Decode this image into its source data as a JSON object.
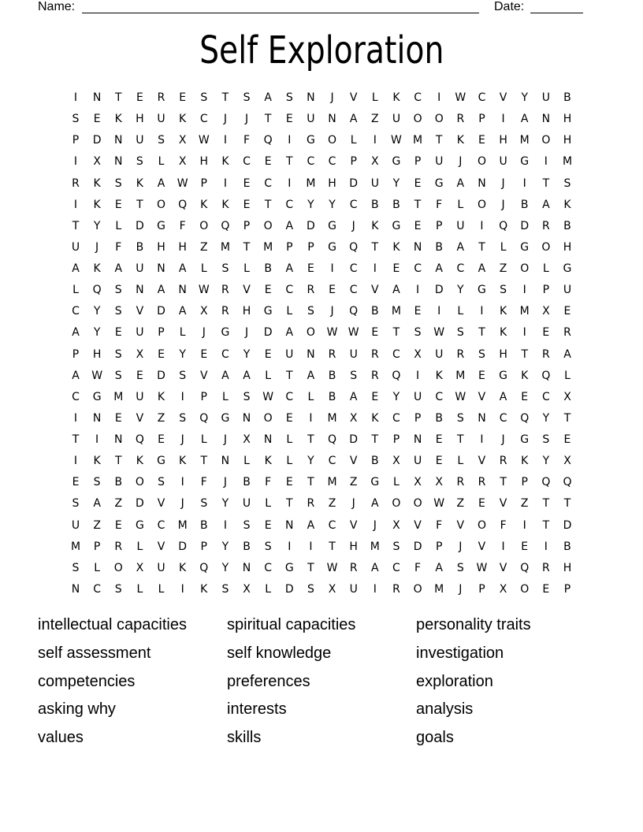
{
  "header": {
    "name_label": "Name:",
    "date_label": "Date:"
  },
  "title": "Self Exploration",
  "grid_rows": [
    "INTERESTSASNJVLKCIWCVYUB",
    "SEKHUKCJJTEUNAZUOORPIANH",
    "PDNUSXWIFQIGOLIWMTKEHMOH",
    "IXNSLXHKCETCCPXGPUJOUGIM",
    "RKSKAWPIECIMHDUYEGANJITS",
    "IKETOQKKETCYYCBBTFLOJBAK",
    "TYLDGFOQPOADGJKGEPUIQDRB",
    "UJFBHHZMTMPPGQTKNBATLGOH",
    "AKAUNALSLBAEICIECACAZOLG",
    "LQSNANWRVECRECVAIDYGSIPU",
    "CYSVDAXRHGLSJQBMEILIKMXE",
    "AYEUPLJGJDAOWWETSWSTKIER",
    "PHSXEYECYEUNRURCXURSHTRA",
    "AWSEDSVAALTABSRQIKMEGKQL",
    "CGMUKIPLSWCLBAEYUCWVAECX",
    "INEVZSQGNOEIMXKCPBSNCQYT",
    "TINQEJLJXNLTQDTPNETIJGSE",
    "IKTKGKTNLKLYCVBXUELVRKYX",
    "ESBOSIFJBFETMZGLXXRRTPQQ",
    "SAZDVJSYULTRZJAOOWZEVZTT",
    "UZEGCMBISENACVJXVFVOFITD",
    "MPRLVDPYBSIITHMSDPJVIEIB",
    "SLOXUKQYNCGTWRACFASWVQRH",
    "NCSLLIKSXLDSXUIROMJPXOEP"
  ],
  "word_columns": [
    [
      "intellectual capacities",
      "self assessment",
      "competencies",
      "asking why",
      "values"
    ],
    [
      "spiritual capacities",
      "self knowledge",
      "preferences",
      "interests",
      "skills"
    ],
    [
      "personality traits",
      "investigation",
      "exploration",
      "analysis",
      "goals"
    ]
  ]
}
